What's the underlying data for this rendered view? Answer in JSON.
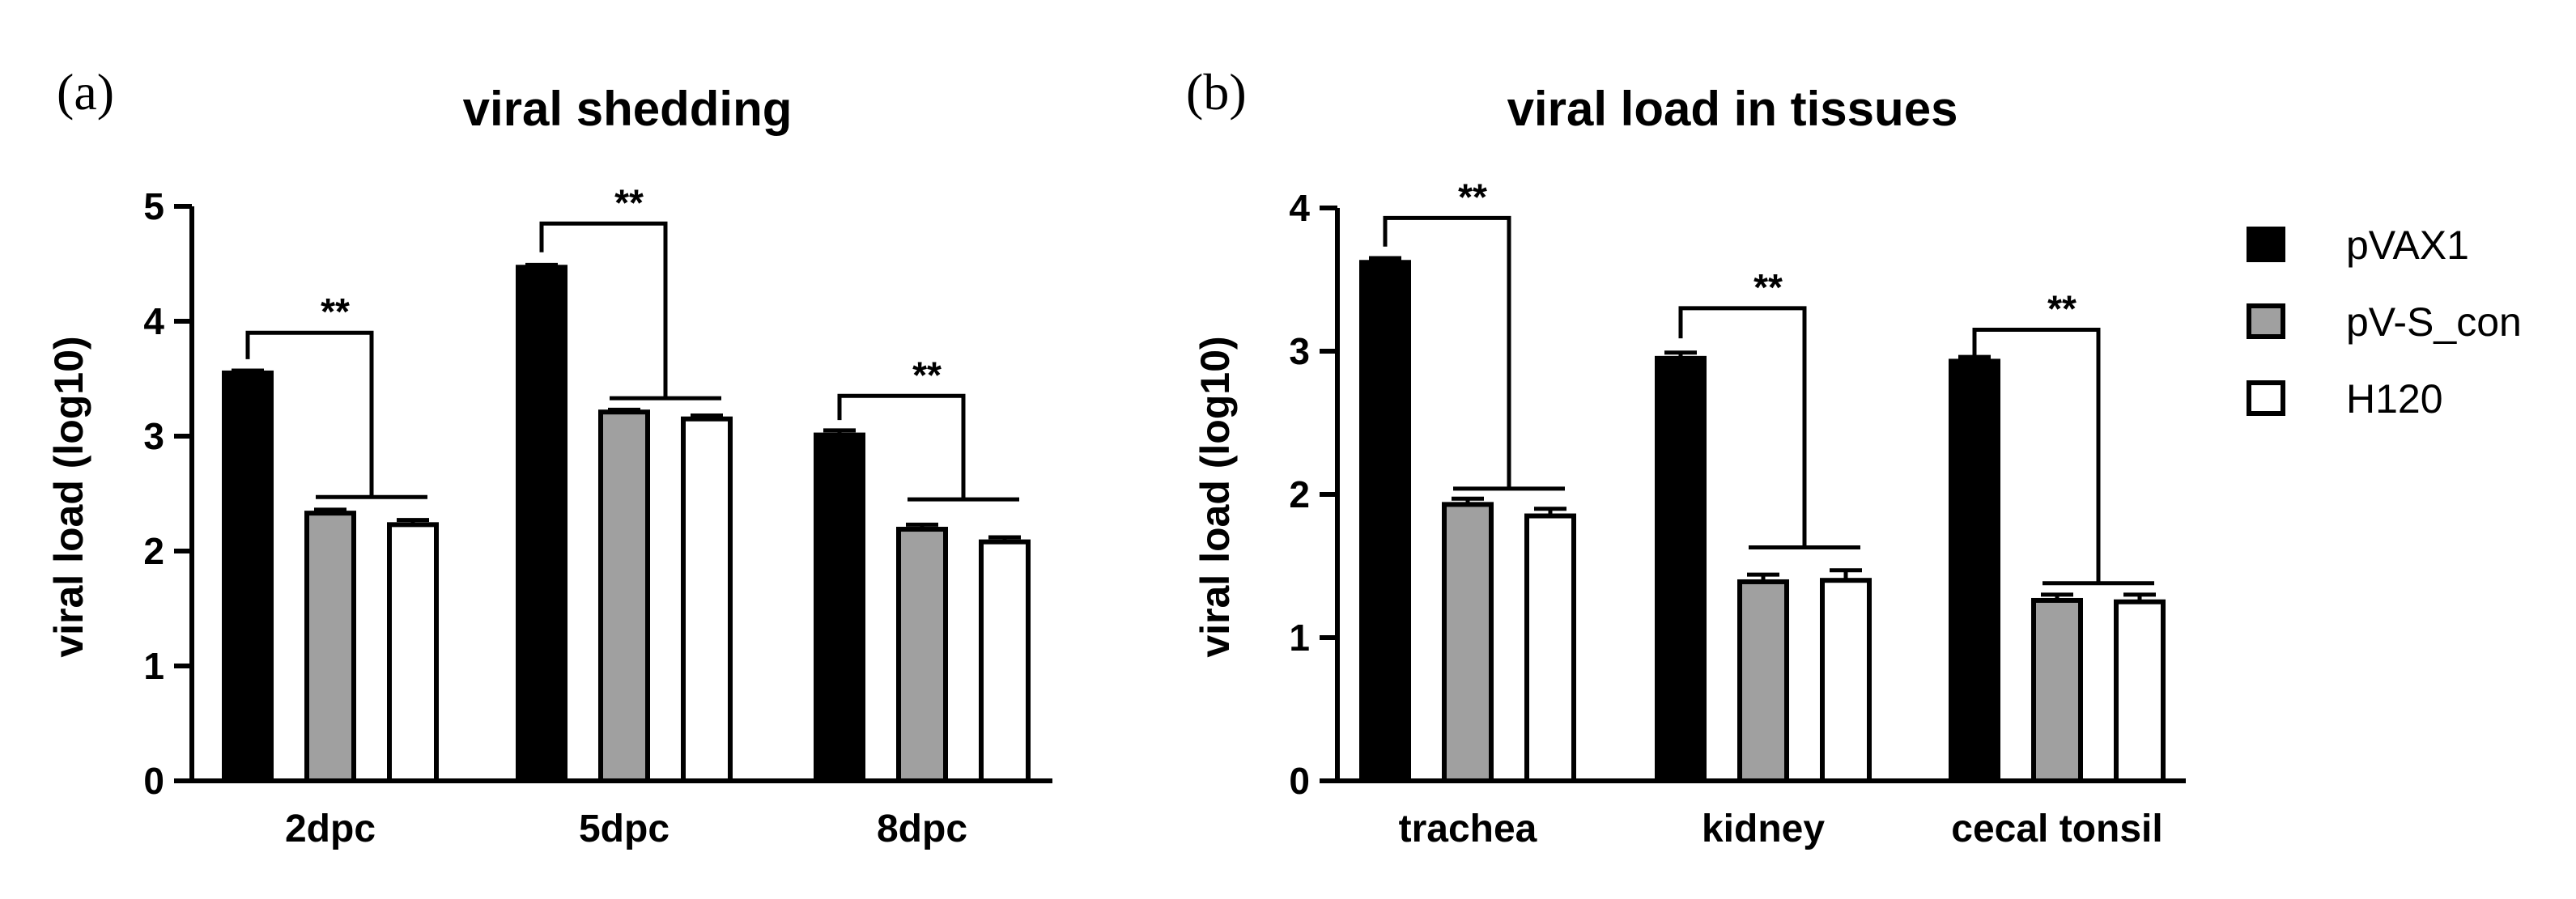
{
  "legend": [
    {
      "name": "pVAX1",
      "color": "#000000"
    },
    {
      "name": "pV-S_con",
      "color": "#a0a0a0"
    },
    {
      "name": "H120",
      "color": "#ffffff"
    }
  ],
  "chart_data": [
    {
      "id": "a",
      "panel_label": "(a)",
      "type": "bar",
      "title": "viral shedding",
      "xlabel": "",
      "ylabel": "viral load (log10)",
      "ylim": [
        0,
        5
      ],
      "yticks": [
        0,
        1,
        2,
        3,
        4,
        5
      ],
      "categories": [
        "2dpc",
        "5dpc",
        "8dpc"
      ],
      "series": [
        {
          "name": "pVAX1",
          "values": [
            3.55,
            4.47,
            3.01
          ],
          "errors": [
            0.02,
            0.02,
            0.04
          ]
        },
        {
          "name": "pV-S_con",
          "values": [
            2.33,
            3.21,
            2.19
          ],
          "errors": [
            0.03,
            0.02,
            0.04
          ]
        },
        {
          "name": "H120",
          "values": [
            2.23,
            3.15,
            2.08
          ],
          "errors": [
            0.04,
            0.03,
            0.04
          ]
        }
      ],
      "annotations": [
        {
          "category": "2dpc",
          "text": "**",
          "top": 3.9,
          "drop": 3.67,
          "right_drop": 2.47
        },
        {
          "category": "5dpc",
          "text": "**",
          "top": 4.85,
          "drop": 4.6,
          "right_drop": 3.33
        },
        {
          "category": "8dpc",
          "text": "**",
          "top": 3.35,
          "drop": 3.14,
          "right_drop": 2.45
        }
      ]
    },
    {
      "id": "b",
      "panel_label": "(b)",
      "type": "bar",
      "title": "viral load in tissues",
      "xlabel": "",
      "ylabel": "viral load (log10)",
      "ylim": [
        0,
        4
      ],
      "yticks": [
        0,
        1,
        2,
        3,
        4
      ],
      "categories": [
        "trachea",
        "kidney",
        "cecal tonsil"
      ],
      "series": [
        {
          "name": "pVAX1",
          "values": [
            3.62,
            2.95,
            2.93
          ],
          "errors": [
            0.03,
            0.04,
            0.03
          ]
        },
        {
          "name": "pV-S_con",
          "values": [
            1.93,
            1.39,
            1.26
          ],
          "errors": [
            0.04,
            0.05,
            0.04
          ]
        },
        {
          "name": "H120",
          "values": [
            1.85,
            1.4,
            1.25
          ],
          "errors": [
            0.05,
            0.07,
            0.05
          ]
        }
      ],
      "annotations": [
        {
          "category": "trachea",
          "text": "**",
          "top": 3.93,
          "drop": 3.73,
          "right_drop": 2.04
        },
        {
          "category": "kidney",
          "text": "**",
          "top": 3.3,
          "drop": 3.09,
          "right_drop": 1.63
        },
        {
          "category": "cecal tonsil",
          "text": "**",
          "top": 3.15,
          "drop": 2.97,
          "right_drop": 1.38
        }
      ]
    }
  ]
}
